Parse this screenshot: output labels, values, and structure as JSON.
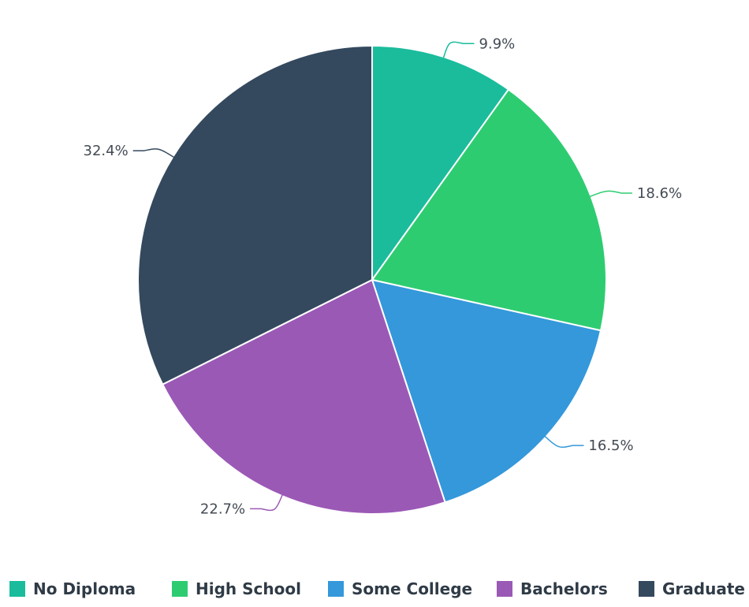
{
  "chart_data": {
    "type": "pie",
    "title": "",
    "categories": [
      "No Diploma",
      "High School",
      "Some College",
      "Bachelors",
      "Graduate"
    ],
    "values": [
      9.9,
      18.6,
      16.5,
      22.7,
      32.4
    ],
    "labels": [
      "9.9%",
      "18.6%",
      "16.5%",
      "22.7%",
      "32.4%"
    ],
    "colors": [
      "#1abc9c",
      "#2ecc71",
      "#3498db",
      "#9b59b6",
      "#34495e"
    ],
    "start_angle_deg": 0,
    "direction": "clockwise",
    "legend_position": "bottom"
  }
}
